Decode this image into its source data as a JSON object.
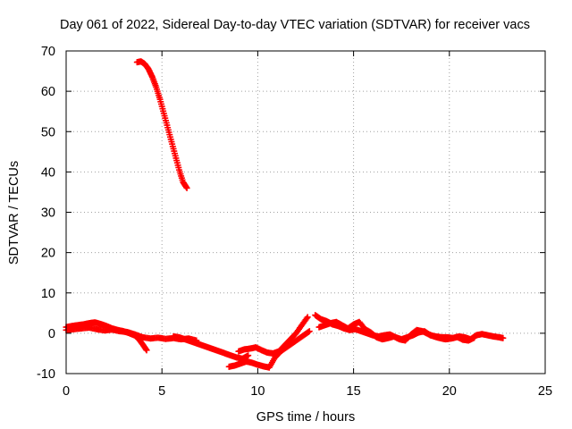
{
  "chart_data": {
    "type": "scatter",
    "title": "Day 061 of 2022, Sidereal Day-to-day VTEC variation (SDTVAR) for receiver vacs",
    "xlabel": "GPS time / hours",
    "ylabel": "SDTVAR / TECUs",
    "xlim": [
      0,
      25
    ],
    "ylim": [
      -10,
      70
    ],
    "x_ticks": [
      0,
      5,
      10,
      15,
      20,
      25
    ],
    "y_ticks": [
      -10,
      0,
      10,
      20,
      30,
      40,
      50,
      60,
      70
    ],
    "grid": true,
    "marker": "+",
    "series": [
      {
        "name": "SDTVAR",
        "color": "#ff0000",
        "segments": [
          {
            "x": [
              3.7,
              3.9,
              4.1,
              4.3,
              4.5,
              4.7,
              4.9,
              5.1,
              5.3,
              5.5,
              5.7,
              5.9,
              6.1,
              6.3
            ],
            "y": [
              67.2,
              67.4,
              66.8,
              65.5,
              63.5,
              61.0,
              58.0,
              54.5,
              51.0,
              47.5,
              44.0,
              40.5,
              37.5,
              36.0
            ]
          },
          {
            "x": [
              0.0,
              0.3,
              0.6,
              0.9,
              1.2,
              1.5,
              1.8,
              2.1,
              2.4,
              2.7,
              3.0,
              3.3,
              3.6,
              3.8,
              4.0,
              4.2
            ],
            "y": [
              1.5,
              1.8,
              2.0,
              2.2,
              2.5,
              2.7,
              2.3,
              1.8,
              1.2,
              0.8,
              0.5,
              0.0,
              -0.6,
              -1.5,
              -2.8,
              -4.2
            ]
          },
          {
            "x": [
              0.0,
              0.4,
              0.8,
              1.2,
              1.6,
              2.0,
              2.4,
              2.8,
              3.2,
              3.6,
              4.0,
              4.4,
              4.8,
              5.2,
              5.6,
              6.0,
              6.4,
              6.8
            ],
            "y": [
              0.8,
              1.0,
              1.2,
              1.4,
              1.0,
              0.7,
              0.9,
              0.5,
              0.3,
              -0.3,
              -1.0,
              -1.3,
              -1.1,
              -1.4,
              -1.2,
              -1.5,
              -1.3,
              -1.8
            ]
          },
          {
            "x": [
              5.6,
              5.9,
              6.2,
              6.5,
              6.8,
              7.1,
              7.4,
              7.7,
              8.0,
              8.3,
              8.6,
              8.9,
              9.2,
              9.5
            ],
            "y": [
              -0.8,
              -1.0,
              -1.5,
              -2.0,
              -2.5,
              -3.0,
              -3.5,
              -4.0,
              -4.5,
              -5.0,
              -5.5,
              -6.0,
              -6.3,
              -5.5
            ]
          },
          {
            "x": [
              8.5,
              8.8,
              9.1,
              9.4,
              9.7,
              10.0,
              10.3,
              10.6,
              10.9,
              11.2,
              11.5,
              11.8,
              12.1,
              12.4,
              12.7
            ],
            "y": [
              -8.3,
              -8.0,
              -7.5,
              -7.0,
              -7.3,
              -7.8,
              -8.2,
              -8.5,
              -6.0,
              -4.5,
              -3.5,
              -2.5,
              -1.5,
              -0.5,
              0.5
            ]
          },
          {
            "x": [
              9.0,
              9.3,
              9.6,
              9.9,
              10.2,
              10.5,
              10.8,
              11.1,
              11.4,
              11.7,
              12.0,
              12.3,
              12.6
            ],
            "y": [
              -4.5,
              -4.0,
              -3.8,
              -3.5,
              -4.2,
              -4.8,
              -5.0,
              -4.5,
              -3.0,
              -1.5,
              0.0,
              2.0,
              4.0
            ]
          },
          {
            "x": [
              13.0,
              13.3,
              13.6,
              13.9,
              14.2,
              14.5,
              14.8,
              15.1,
              15.4,
              15.7,
              16.0,
              16.3,
              16.6,
              16.9,
              17.2,
              17.5,
              17.8,
              18.1,
              18.4,
              18.7,
              19.0,
              19.3,
              19.6,
              19.9,
              20.2,
              20.5,
              20.8,
              21.1,
              21.4,
              21.7,
              22.0,
              22.3,
              22.6,
              22.8
            ],
            "y": [
              4.5,
              3.5,
              3.0,
              2.2,
              1.8,
              1.2,
              0.8,
              1.0,
              0.5,
              0.0,
              -0.5,
              -0.8,
              -0.5,
              -0.3,
              -1.0,
              -1.5,
              -1.0,
              -0.5,
              0.2,
              0.5,
              -0.5,
              -0.8,
              -1.0,
              -1.0,
              -1.2,
              -0.8,
              -1.0,
              -1.5,
              -0.5,
              -0.2,
              -0.5,
              -0.8,
              -1.0,
              -1.2
            ]
          },
          {
            "x": [
              13.2,
              13.5,
              13.8,
              14.1,
              14.4,
              14.7,
              15.0,
              15.3,
              15.6,
              15.9,
              16.2,
              16.5,
              16.8,
              17.1,
              17.4,
              17.7,
              18.0,
              18.3,
              18.6,
              18.9,
              19.2,
              19.5,
              19.8,
              20.1,
              20.4,
              20.7,
              21.0,
              21.3
            ],
            "y": [
              1.5,
              2.0,
              2.5,
              2.8,
              2.0,
              1.2,
              2.2,
              2.8,
              1.0,
              0.2,
              -1.0,
              -1.5,
              -1.2,
              -0.8,
              -1.5,
              -1.8,
              -0.3,
              0.8,
              0.5,
              -0.2,
              -0.8,
              -1.2,
              -1.5,
              -1.3,
              -0.9,
              -1.6,
              -1.8,
              -1.1
            ]
          }
        ]
      }
    ]
  }
}
